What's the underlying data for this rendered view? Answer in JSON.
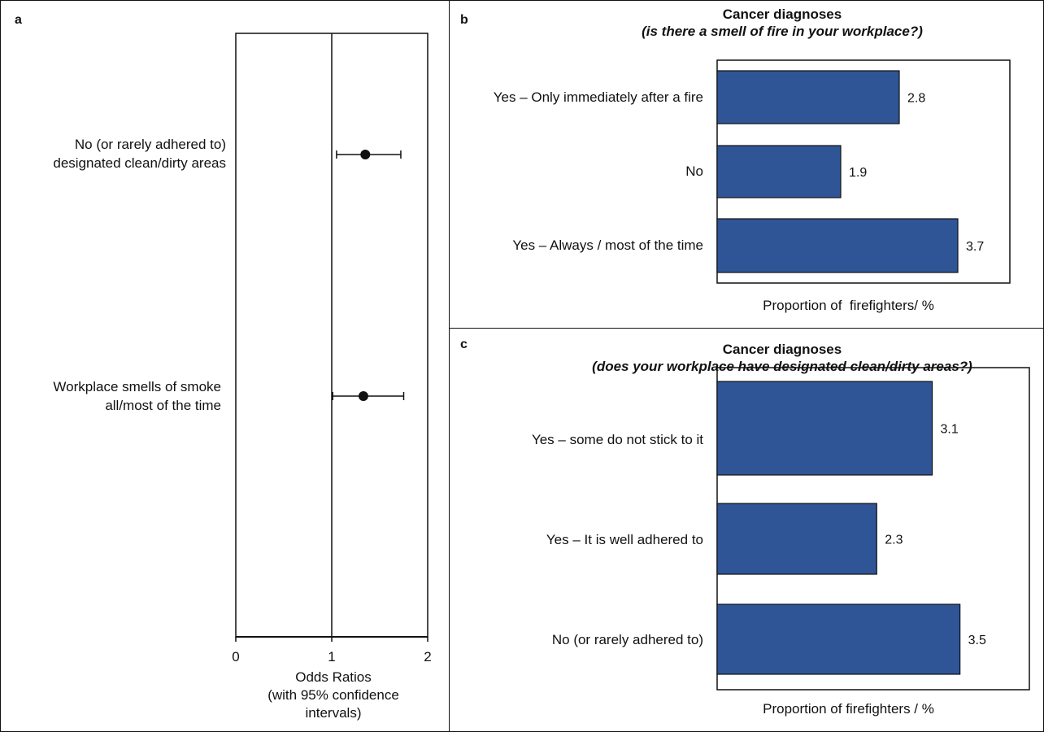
{
  "chart_data": [
    {
      "panel": "a",
      "type": "scatter",
      "subtype": "forest-plot",
      "title": "",
      "xlabel": [
        "Odds Ratios",
        "(with 95% confidence",
        "intervals)"
      ],
      "xlim": [
        0,
        2
      ],
      "xticks": [
        "0",
        "1",
        "2"
      ],
      "reference_line": 1,
      "categories": [
        "No (or rarely adhered to) designated clean/dirty areas",
        "Workplace smells of smoke all/most of the time"
      ],
      "category_lines": [
        [
          "No (or rarely adhered to)",
          "designated clean/dirty areas"
        ],
        [
          "Workplace smells of smoke",
          "all/most of the time"
        ]
      ],
      "estimates": [
        1.35,
        1.33
      ],
      "ci_lower": [
        1.05,
        1.01
      ],
      "ci_upper": [
        1.72,
        1.75
      ],
      "color": "#111111"
    },
    {
      "panel": "b",
      "type": "bar",
      "orientation": "horizontal",
      "title": "Cancer diagnoses",
      "subtitle": "(is there a smell of fire in your workplace?)",
      "xlabel": "Proportion of  firefighters/ %",
      "xlim": [
        0,
        4.5
      ],
      "categories": [
        "Yes – Only immediately after a fire",
        "No",
        "Yes – Always / most of the time"
      ],
      "values": [
        2.8,
        1.9,
        3.7
      ],
      "value_labels": [
        "2.8",
        "1.9",
        "3.7"
      ],
      "bar_color": "#2f5597"
    },
    {
      "panel": "c",
      "type": "bar",
      "orientation": "horizontal",
      "title": "Cancer diagnoses",
      "subtitle": "(does your workplace have designated clean/dirty areas?)",
      "xlabel": "Proportion of firefighters / %",
      "xlim": [
        0,
        4.5
      ],
      "categories": [
        "Yes – some do not stick to it",
        "Yes – It is well adhered to",
        "No (or rarely adhered to)"
      ],
      "values": [
        3.1,
        2.3,
        3.5
      ],
      "value_labels": [
        "3.1",
        "2.3",
        "3.5"
      ],
      "bar_color": "#2f5597"
    }
  ]
}
